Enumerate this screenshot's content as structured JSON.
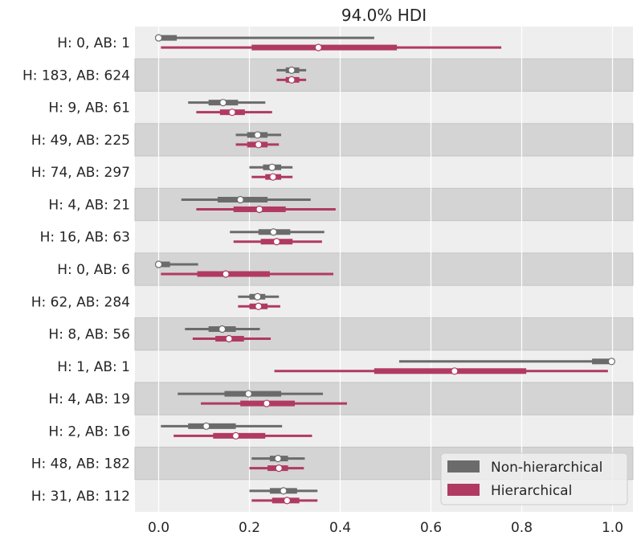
{
  "chart_data": {
    "type": "forest",
    "title": "94.0% HDI",
    "xlim": [
      -0.05,
      1.05
    ],
    "xticks": [
      0.0,
      0.2,
      0.4,
      0.6,
      0.8,
      1.0
    ],
    "xtick_labels": [
      "0.0",
      "0.2",
      "0.4",
      "0.6",
      "0.8",
      "1.0"
    ],
    "grid": true,
    "legend_position": "bottom-right",
    "categories": [
      "H: 0, AB: 1",
      "H: 183, AB: 624",
      "H: 9, AB: 61",
      "H: 49, AB: 225",
      "H: 74, AB: 297",
      "H: 4, AB: 21",
      "H: 16, AB: 63",
      "H: 0, AB: 6",
      "H: 62, AB: 284",
      "H: 8, AB: 56",
      "H: 1, AB: 1",
      "H: 4, AB: 19",
      "H: 2, AB: 16",
      "H: 48, AB: 182",
      "H: 31, AB: 112"
    ],
    "series": [
      {
        "name": "Non-hierarchical",
        "color": "#6b6b6b",
        "intervals": [
          {
            "hdi": [
              0.0,
              0.475
            ],
            "iqr": [
              0.005,
              0.04
            ],
            "median": 0.0
          },
          {
            "hdi": [
              0.26,
              0.325
            ],
            "iqr": [
              0.28,
              0.31
            ],
            "median": 0.293
          },
          {
            "hdi": [
              0.065,
              0.235
            ],
            "iqr": [
              0.11,
              0.175
            ],
            "median": 0.142
          },
          {
            "hdi": [
              0.17,
              0.27
            ],
            "iqr": [
              0.195,
              0.24
            ],
            "median": 0.218
          },
          {
            "hdi": [
              0.2,
              0.295
            ],
            "iqr": [
              0.23,
              0.27
            ],
            "median": 0.25
          },
          {
            "hdi": [
              0.05,
              0.335
            ],
            "iqr": [
              0.13,
              0.24
            ],
            "median": 0.18
          },
          {
            "hdi": [
              0.157,
              0.365
            ],
            "iqr": [
              0.22,
              0.29
            ],
            "median": 0.253
          },
          {
            "hdi": [
              0.0,
              0.087
            ],
            "iqr": [
              0.0,
              0.025
            ],
            "median": 0.0
          },
          {
            "hdi": [
              0.175,
              0.265
            ],
            "iqr": [
              0.2,
              0.235
            ],
            "median": 0.218
          },
          {
            "hdi": [
              0.058,
              0.223
            ],
            "iqr": [
              0.11,
              0.17
            ],
            "median": 0.14
          },
          {
            "hdi": [
              0.53,
              1.0
            ],
            "iqr": [
              0.955,
              0.995
            ],
            "median": 0.998
          },
          {
            "hdi": [
              0.042,
              0.362
            ],
            "iqr": [
              0.145,
              0.27
            ],
            "median": 0.198
          },
          {
            "hdi": [
              0.005,
              0.272
            ],
            "iqr": [
              0.065,
              0.17
            ],
            "median": 0.105
          },
          {
            "hdi": [
              0.205,
              0.322
            ],
            "iqr": [
              0.245,
              0.285
            ],
            "median": 0.263
          },
          {
            "hdi": [
              0.2,
              0.35
            ],
            "iqr": [
              0.245,
              0.305
            ],
            "median": 0.275
          }
        ]
      },
      {
        "name": "Hierarchical",
        "color": "#b03a62",
        "intervals": [
          {
            "hdi": [
              0.005,
              0.755
            ],
            "iqr": [
              0.205,
              0.525
            ],
            "median": 0.352
          },
          {
            "hdi": [
              0.26,
              0.325
            ],
            "iqr": [
              0.28,
              0.31
            ],
            "median": 0.293
          },
          {
            "hdi": [
              0.083,
              0.25
            ],
            "iqr": [
              0.135,
              0.19
            ],
            "median": 0.162
          },
          {
            "hdi": [
              0.17,
              0.265
            ],
            "iqr": [
              0.195,
              0.24
            ],
            "median": 0.22
          },
          {
            "hdi": [
              0.205,
              0.295
            ],
            "iqr": [
              0.235,
              0.27
            ],
            "median": 0.252
          },
          {
            "hdi": [
              0.083,
              0.39
            ],
            "iqr": [
              0.165,
              0.28
            ],
            "median": 0.222
          },
          {
            "hdi": [
              0.165,
              0.36
            ],
            "iqr": [
              0.225,
              0.295
            ],
            "median": 0.26
          },
          {
            "hdi": [
              0.005,
              0.385
            ],
            "iqr": [
              0.085,
              0.245
            ],
            "median": 0.148
          },
          {
            "hdi": [
              0.175,
              0.268
            ],
            "iqr": [
              0.2,
              0.24
            ],
            "median": 0.22
          },
          {
            "hdi": [
              0.075,
              0.247
            ],
            "iqr": [
              0.125,
              0.188
            ],
            "median": 0.155
          },
          {
            "hdi": [
              0.255,
              0.99
            ],
            "iqr": [
              0.475,
              0.81
            ],
            "median": 0.652
          },
          {
            "hdi": [
              0.093,
              0.415
            ],
            "iqr": [
              0.18,
              0.3
            ],
            "median": 0.238
          },
          {
            "hdi": [
              0.033,
              0.338
            ],
            "iqr": [
              0.12,
              0.235
            ],
            "median": 0.17
          },
          {
            "hdi": [
              0.2,
              0.32
            ],
            "iqr": [
              0.24,
              0.285
            ],
            "median": 0.265
          },
          {
            "hdi": [
              0.205,
              0.35
            ],
            "iqr": [
              0.25,
              0.31
            ],
            "median": 0.283
          }
        ]
      }
    ]
  }
}
